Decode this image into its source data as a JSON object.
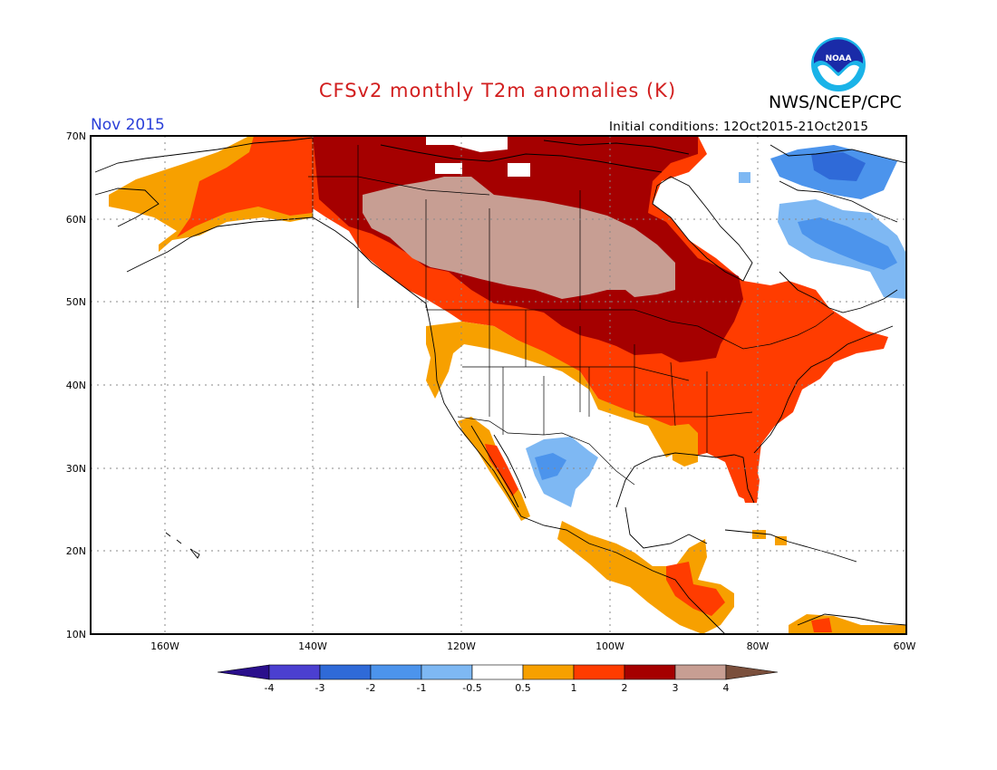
{
  "header": {
    "title": "CFSv2 monthly T2m anomalies (K)",
    "organization": "NWS/NCEP/CPC",
    "logo_text": "NOAA",
    "valid_month": "Nov 2015",
    "initial_conditions": "Initial conditions: 12Oct2015-21Oct2015"
  },
  "map": {
    "lat_labels": [
      "70N",
      "60N",
      "50N",
      "40N",
      "30N",
      "20N",
      "10N"
    ],
    "lon_labels": [
      "160W",
      "140W",
      "120W",
      "100W",
      "80W",
      "60W"
    ],
    "lat_range": [
      10,
      70
    ],
    "lon_range": [
      -170,
      -60
    ]
  },
  "colorbar": {
    "labels": [
      "-4",
      "-3",
      "-2",
      "-1",
      "-0.5",
      "0.5",
      "1",
      "2",
      "3",
      "4"
    ],
    "colors": [
      "#2a0f8c",
      "#4b3fd0",
      "#2f6ad8",
      "#4c94ec",
      "#7eb8f3",
      "#ffffff",
      "#f7a000",
      "#ff3c00",
      "#a50000",
      "#c79e93",
      "#7a4f3c"
    ]
  },
  "anomaly_colors": {
    "warm_0_5_1": "#f7a000",
    "warm_1_2": "#ff3c00",
    "warm_2_3": "#a50000",
    "warm_3_4": "#c79e93",
    "cool_-1_-0_5": "#7eb8f3",
    "cool_-2_-1": "#4c94ec",
    "cool_-3_-2": "#2f6ad8"
  }
}
